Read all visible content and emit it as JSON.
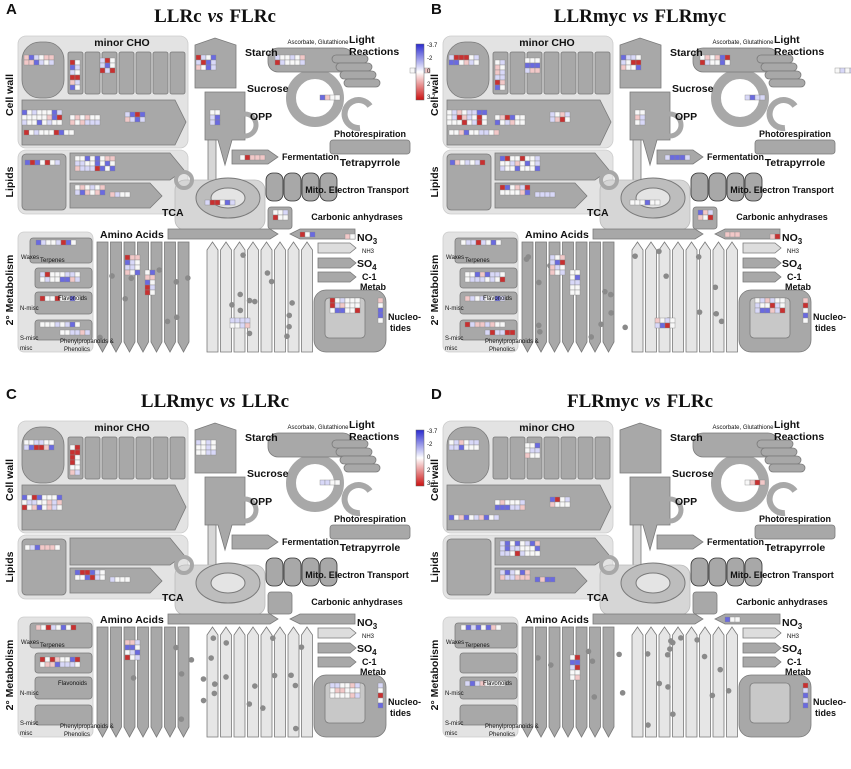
{
  "panels": [
    {
      "letter": "A",
      "title": [
        "LLRc",
        "vs",
        "FLRc"
      ]
    },
    {
      "letter": "B",
      "title": [
        "LLRmyc",
        "vs",
        "FLRmyc"
      ]
    },
    {
      "letter": "C",
      "title": [
        "LLRmyc",
        "vs",
        "LLRc"
      ]
    },
    {
      "letter": "D",
      "title": [
        "FLRmyc",
        "vs",
        "FLRc"
      ]
    }
  ],
  "labels": {
    "minor_cho": "minor CHO",
    "starch": "Starch",
    "sucrose": "Sucrose",
    "opp": "OPP",
    "ascorbate": "Ascorbate, Glutathione",
    "light": [
      "Light",
      "Reactions"
    ],
    "photorespiration": "Photorespiration",
    "fermentation": "Fermentation",
    "tetrapyrrole": "Tetrapyrrole",
    "mito": "Mito. Electron Transport",
    "carbonic": "Carbonic anhydrases",
    "tca": "TCA",
    "amino": "Amino Acids",
    "no3": {
      "main": "NO",
      "sub": "3"
    },
    "nh3": "NH3",
    "so4": {
      "main": "SO",
      "sub": "4"
    },
    "c1": [
      "C-1",
      "Metab"
    ],
    "nucleo": [
      "Nucleo-",
      "tides"
    ],
    "cell_wall": "Cell wall",
    "lipids": "Lipids",
    "sec_metab": "2° Metabolism",
    "waxes": "Waxes",
    "terpenes": "Terpenes",
    "flavonoids": "Flavonoids",
    "n_misc": "N-misc",
    "s_misc": "S-misc",
    "misc": "misc",
    "phenyl": [
      "Phenylpropanoids &",
      "Phenolics"
    ]
  },
  "legend": {
    "ticks": [
      "-3.7",
      "-2",
      "0",
      "2",
      "3.7"
    ]
  }
}
